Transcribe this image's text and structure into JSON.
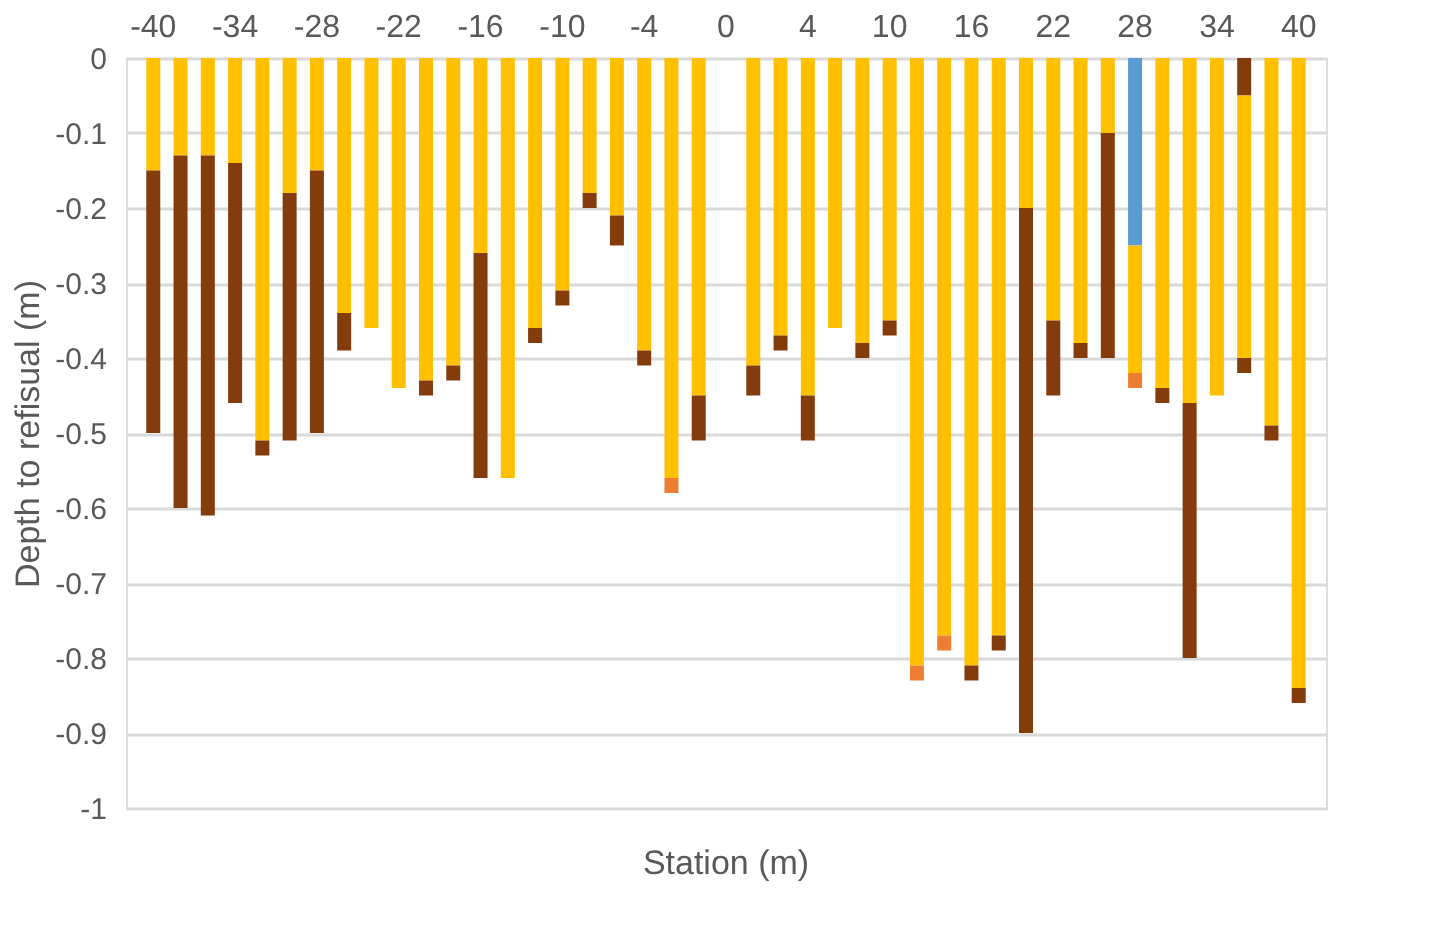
{
  "chart_data": {
    "type": "bar",
    "stacked": true,
    "xlabel": "Station (m)",
    "ylabel": "Depth to refisual (m)",
    "categories": [
      "-40",
      null,
      null,
      "-34",
      null,
      null,
      "-28",
      null,
      null,
      "-22",
      null,
      null,
      "-16",
      null,
      null,
      "-10",
      null,
      null,
      "-4",
      null,
      null,
      "0",
      null,
      null,
      "4",
      null,
      null,
      "10",
      null,
      null,
      "16",
      null,
      null,
      "22",
      null,
      null,
      "28",
      null,
      null,
      "34",
      null,
      null,
      "40"
    ],
    "series": [
      {
        "color": "#5b9bd5",
        "values": [
          null,
          null,
          null,
          null,
          null,
          null,
          null,
          null,
          null,
          null,
          null,
          null,
          null,
          null,
          null,
          null,
          null,
          null,
          null,
          null,
          null,
          null,
          null,
          null,
          null,
          null,
          null,
          null,
          null,
          null,
          null,
          null,
          null,
          null,
          null,
          null,
          -0.25,
          null,
          null,
          null,
          null,
          null,
          null
        ]
      },
      {
        "color": "#843c0c",
        "values": [
          null,
          null,
          null,
          null,
          null,
          null,
          null,
          null,
          null,
          null,
          null,
          null,
          null,
          null,
          null,
          null,
          null,
          null,
          null,
          null,
          null,
          null,
          null,
          null,
          null,
          null,
          null,
          null,
          null,
          null,
          null,
          null,
          null,
          null,
          null,
          null,
          null,
          null,
          null,
          null,
          -0.05,
          null,
          null
        ]
      },
      {
        "color": "#ffc000",
        "values": [
          -0.15,
          -0.13,
          -0.13,
          -0.14,
          -0.51,
          -0.18,
          -0.15,
          -0.34,
          -0.36,
          -0.44,
          -0.43,
          -0.41,
          -0.26,
          -0.56,
          -0.36,
          -0.31,
          -0.18,
          -0.21,
          -0.39,
          -0.56,
          -0.45,
          null,
          -0.41,
          -0.37,
          -0.45,
          -0.36,
          -0.38,
          -0.35,
          -0.81,
          -0.77,
          -0.81,
          -0.77,
          -0.2,
          -0.35,
          -0.38,
          -0.1,
          -0.17,
          -0.44,
          -0.46,
          -0.45,
          -0.35,
          -0.49,
          -0.84
        ]
      },
      {
        "color": "#843c0c",
        "values": [
          -0.35,
          -0.47,
          -0.48,
          -0.32,
          -0.02,
          -0.33,
          -0.35,
          -0.05,
          null,
          null,
          -0.02,
          -0.02,
          -0.3,
          null,
          -0.02,
          -0.02,
          -0.02,
          -0.04,
          -0.02,
          null,
          -0.06,
          null,
          -0.04,
          -0.02,
          -0.06,
          null,
          -0.02,
          -0.02,
          null,
          null,
          -0.02,
          -0.02,
          -0.7,
          -0.1,
          -0.02,
          -0.3,
          null,
          -0.02,
          -0.34,
          null,
          -0.02,
          -0.02,
          -0.02
        ]
      },
      {
        "color": "#ed7d31",
        "values": [
          null,
          null,
          null,
          null,
          null,
          null,
          null,
          null,
          null,
          null,
          null,
          null,
          null,
          null,
          null,
          null,
          null,
          null,
          null,
          -0.02,
          null,
          null,
          null,
          null,
          null,
          null,
          null,
          null,
          -0.02,
          -0.02,
          null,
          null,
          null,
          null,
          null,
          null,
          -0.02,
          null,
          null,
          null,
          null,
          null,
          null
        ]
      }
    ],
    "ylim": [
      -1,
      0
    ],
    "yticks": [
      0,
      -0.1,
      -0.2,
      -0.3,
      -0.4,
      -0.5,
      -0.6,
      -0.7,
      -0.8,
      -0.9,
      -1
    ],
    "grid": "y",
    "legend": false
  }
}
